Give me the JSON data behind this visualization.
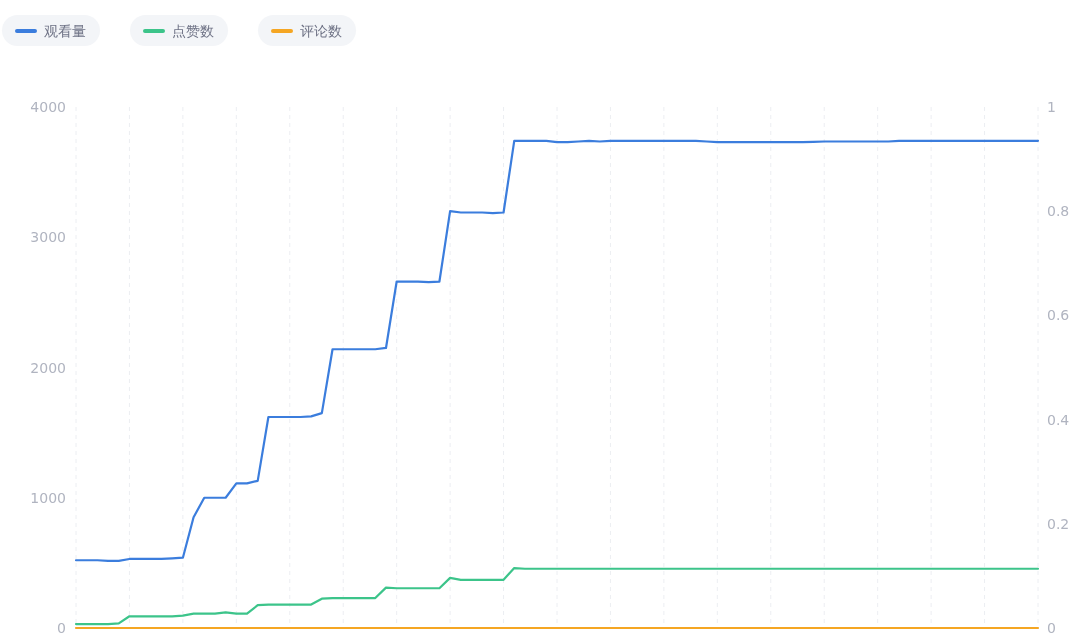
{
  "chart_data": {
    "type": "line",
    "legend": "top left",
    "grid": "x",
    "categories": [
      null,
      null,
      null,
      null,
      null,
      null,
      null,
      null,
      null,
      null,
      null,
      null,
      null,
      null,
      null,
      null,
      null,
      null,
      null,
      null,
      null,
      null,
      null,
      null,
      null,
      null,
      null,
      null,
      null,
      null,
      null,
      null,
      null,
      null,
      null,
      null,
      null,
      null,
      null,
      null,
      null,
      null,
      null,
      null,
      null,
      null,
      null,
      null,
      null,
      null,
      null,
      null,
      null,
      null,
      null,
      null,
      null,
      null,
      null,
      null,
      null,
      null,
      null,
      null,
      null,
      null,
      null,
      null,
      null,
      null,
      null,
      null,
      null,
      null,
      null,
      null,
      null,
      null,
      null,
      null,
      null,
      null,
      null,
      null,
      null,
      null,
      null,
      null,
      null,
      null,
      null
    ],
    "ylim": [
      0,
      4000
    ],
    "yticks": [
      0,
      1000,
      2000,
      3000,
      4000
    ],
    "y2lim": [
      0,
      1
    ],
    "y2ticks": [
      0,
      0.2,
      0.4,
      0.6,
      0.8,
      1
    ],
    "series": [
      {
        "name": "观看量",
        "color": "#3b7ddd",
        "values": [
          520,
          520,
          520,
          515,
          515,
          530,
          530,
          530,
          530,
          535,
          540,
          850,
          1000,
          1000,
          1000,
          1110,
          1110,
          1130,
          1620,
          1620,
          1620,
          1620,
          1625,
          1650,
          2140,
          2140,
          2140,
          2140,
          2140,
          2150,
          2660,
          2660,
          2660,
          2655,
          2660,
          3200,
          3190,
          3190,
          3190,
          3185,
          3190,
          3740,
          3740,
          3740,
          3740,
          3730,
          3730,
          3735,
          3740,
          3735,
          3740,
          3740,
          3740,
          3740,
          3740,
          3740,
          3740,
          3740,
          3740,
          3735,
          3730,
          3730,
          3730,
          3730,
          3730,
          3730,
          3730,
          3730,
          3730,
          3732,
          3735,
          3735,
          3735,
          3735,
          3735,
          3735,
          3735,
          3740,
          3740,
          3740,
          3740,
          3740,
          3740,
          3740,
          3740,
          3740,
          3740,
          3740,
          3740,
          3740,
          3740
        ]
      },
      {
        "name": "点赞数",
        "color": "#3cc48a",
        "values": [
          30,
          30,
          30,
          30,
          35,
          90,
          90,
          90,
          90,
          90,
          95,
          110,
          110,
          110,
          120,
          110,
          110,
          175,
          180,
          180,
          180,
          180,
          180,
          225,
          230,
          230,
          230,
          230,
          230,
          310,
          305,
          305,
          305,
          305,
          305,
          385,
          370,
          370,
          370,
          370,
          370,
          460,
          455,
          455,
          455,
          455,
          455,
          455,
          455,
          455,
          455,
          455,
          455,
          455,
          455,
          455,
          455,
          455,
          455,
          455,
          455,
          455,
          455,
          455,
          455,
          455,
          455,
          455,
          455,
          455,
          455,
          455,
          455,
          455,
          455,
          455,
          455,
          455,
          455,
          455,
          455,
          455,
          455,
          455,
          455,
          455,
          455,
          455,
          455,
          455,
          455
        ]
      },
      {
        "name": "评论数",
        "color": "#f5a623",
        "axis": "y2",
        "values": [
          0,
          0,
          0,
          0,
          0,
          0,
          0,
          0,
          0,
          0,
          0,
          0,
          0,
          0,
          0,
          0,
          0,
          0,
          0,
          0,
          0,
          0,
          0,
          0,
          0,
          0,
          0,
          0,
          0,
          0,
          0,
          0,
          0,
          0,
          0,
          0,
          0,
          0,
          0,
          0,
          0,
          0,
          0,
          0,
          0,
          0,
          0,
          0,
          0,
          0,
          0,
          0,
          0,
          0,
          0,
          0,
          0,
          0,
          0,
          0,
          0,
          0,
          0,
          0,
          0,
          0,
          0,
          0,
          0,
          0,
          0,
          0,
          0,
          0,
          0,
          0,
          0,
          0,
          0,
          0,
          0,
          0,
          0,
          0,
          0,
          0,
          0,
          0,
          0,
          0,
          0
        ]
      }
    ]
  }
}
